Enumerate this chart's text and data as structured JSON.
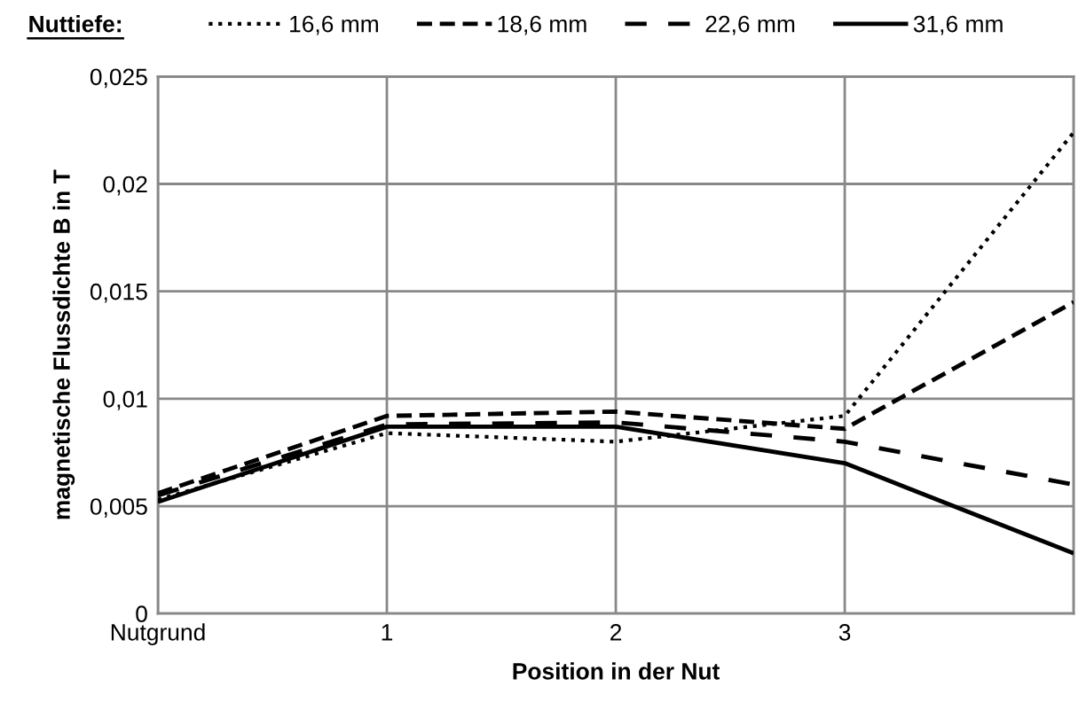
{
  "chart_data": {
    "type": "line",
    "xlabel": "Position in der Nut",
    "ylabel": "magnetische Flussdichte B in T",
    "legend_title": "Nuttiefe:",
    "categories": [
      "Nutgrund",
      "1",
      "2",
      "3",
      null
    ],
    "series": [
      {
        "name": "16,6 mm",
        "color": "#000000",
        "line_style": "dotted",
        "values": [
          0.0053,
          0.0084,
          0.008,
          0.0092,
          0.0224
        ]
      },
      {
        "name": "18,6 mm",
        "color": "#000000",
        "line_style": "dashed",
        "values": [
          0.0056,
          0.0092,
          0.0094,
          0.0086,
          0.0145
        ]
      },
      {
        "name": "22,6 mm",
        "color": "#000000",
        "line_style": "dashed",
        "values": [
          0.0055,
          0.0088,
          0.0089,
          0.008,
          0.006
        ]
      },
      {
        "name": "31,6 mm",
        "color": "#000000",
        "line_style": "solid",
        "values": [
          0.0052,
          0.0087,
          0.0087,
          0.007,
          0.0028
        ]
      }
    ],
    "ylim": [
      0,
      0.025
    ],
    "yticks": [
      {
        "value": 0,
        "label": "0"
      },
      {
        "value": 0.005,
        "label": "0,005"
      },
      {
        "value": 0.01,
        "label": "0,01"
      },
      {
        "value": 0.015,
        "label": "0,015"
      },
      {
        "value": 0.02,
        "label": "0,02"
      },
      {
        "value": 0.025,
        "label": "0,025"
      }
    ],
    "grid": true,
    "legend": "top",
    "marker": "none"
  }
}
